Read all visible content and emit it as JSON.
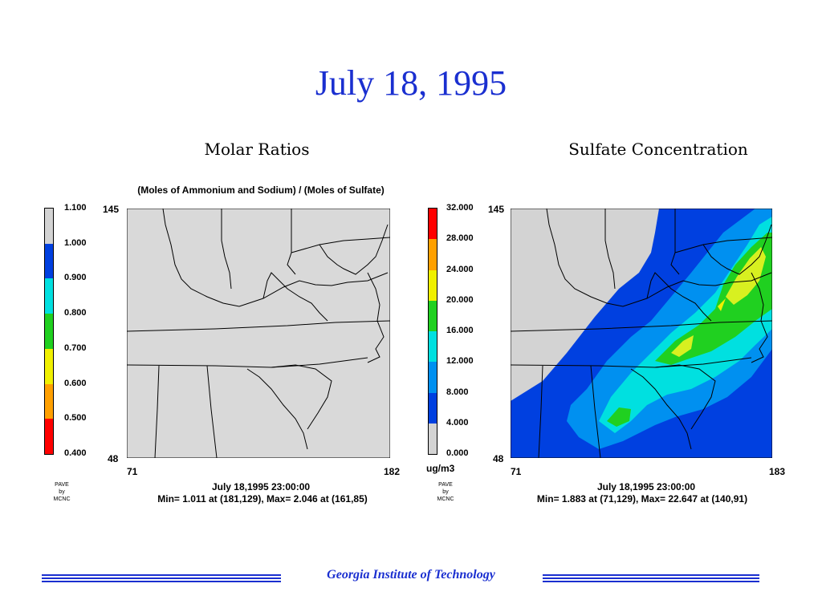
{
  "title": "July 18, 1995",
  "colors": {
    "title_blue": "#1a2fd0",
    "map_gray": "#d9d9d9",
    "footer_blue": "#1a2fd0"
  },
  "left_panel": {
    "title": "Molar Ratios",
    "subtitle": "(Moles of Ammonium and Sodium) / (Moles of Sulfate)",
    "legend_values": [
      "1.100",
      "1.000",
      "0.900",
      "0.800",
      "0.700",
      "0.600",
      "0.500",
      "0.400"
    ],
    "legend_colors": [
      "#d3d3d3",
      "#0040e0",
      "#00e0e0",
      "#20d020",
      "#f0f000",
      "#ffa000",
      "#ff0000"
    ],
    "axis_y_top": "145",
    "axis_y_bottom": "48",
    "axis_x_left": "71",
    "axis_x_right": "182",
    "timestamp": "July 18,1995 23:00:00",
    "minmax": "Min=   1.011 at (181,129), Max=   2.046 at (161,85)",
    "pave_line1": "PAVE",
    "pave_line2": "by",
    "pave_line3": "MCNC"
  },
  "right_panel": {
    "title": "Sulfate Concentration",
    "legend_values": [
      "32.000",
      "28.000",
      "24.000",
      "20.000",
      "16.000",
      "12.000",
      "8.000",
      "4.000",
      "0.000"
    ],
    "legend_colors": [
      "#ff0000",
      "#ffa000",
      "#f0f000",
      "#20d020",
      "#00e0e0",
      "#0090f0",
      "#0040e0",
      "#d3d3d3"
    ],
    "unit": "ug/m3",
    "axis_y_top": "145",
    "axis_y_bottom": "48",
    "axis_x_left": "71",
    "axis_x_right": "183",
    "timestamp": "July 18,1995 23:00:00",
    "minmax": "Min=   1.883 at (71,129), Max=  22.647 at (140,91)",
    "pave_line1": "PAVE",
    "pave_line2": "by",
    "pave_line3": "MCNC"
  },
  "footer": {
    "text": "Georgia Institute of Technology"
  }
}
